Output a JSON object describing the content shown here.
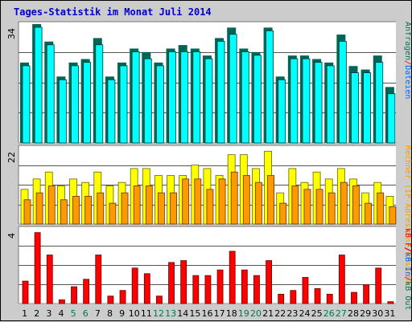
{
  "title": "Tages-Statistik im Monat Juli 2014",
  "colors": {
    "background": "#cccccc",
    "panel": "#ffffff",
    "title": "#0000cc",
    "anfragen": "#00ffff",
    "anfragen_shadow": "#006655",
    "dateien": "#0099ff",
    "rechner": "#ffff00",
    "besuche": "#ff9900",
    "kb_in": "#ff0000",
    "weekend_label": "#007755",
    "weekday_label": "#000000"
  },
  "chart_data": [
    {
      "type": "bar",
      "panel": "top",
      "ymax_label": "34",
      "categories": [
        "1",
        "2",
        "3",
        "4",
        "5",
        "6",
        "7",
        "8",
        "9",
        "10",
        "11",
        "12",
        "13",
        "14",
        "15",
        "16",
        "17",
        "18",
        "19",
        "20",
        "21",
        "22",
        "23",
        "24",
        "25",
        "26",
        "27",
        "28",
        "29",
        "30",
        "31"
      ],
      "weekend": [
        false,
        false,
        false,
        false,
        true,
        true,
        false,
        false,
        false,
        false,
        false,
        true,
        true,
        false,
        false,
        false,
        false,
        false,
        true,
        true,
        false,
        false,
        false,
        false,
        false,
        true,
        true,
        false,
        false,
        false,
        false
      ],
      "ylim": [
        0,
        34
      ],
      "series": [
        {
          "name": "Anfragen",
          "values": [
            23,
            34,
            29,
            19,
            23,
            24,
            30,
            19,
            23,
            27,
            26,
            23,
            27,
            28,
            27,
            25,
            30,
            33,
            27,
            26,
            33,
            19,
            25,
            25,
            24,
            23,
            31,
            22,
            21,
            25,
            16
          ]
        },
        {
          "name": "Dateien",
          "values": [
            23,
            34,
            29,
            19,
            23,
            24,
            29,
            19,
            23,
            27,
            25,
            23,
            27,
            27,
            27,
            25,
            30,
            32,
            27,
            26,
            33,
            19,
            25,
            25,
            24,
            23,
            30,
            21,
            21,
            24,
            15
          ]
        }
      ]
    },
    {
      "type": "bar",
      "panel": "middle",
      "ymax_label": "22",
      "ylim": [
        0,
        22
      ],
      "series": [
        {
          "name": "Rechner (IP-Adressen)",
          "values": [
            10,
            13,
            15,
            11,
            13,
            12,
            15,
            11,
            12,
            16,
            16,
            14,
            14,
            14,
            17,
            16,
            14,
            20,
            20,
            16,
            21,
            9,
            16,
            12,
            15,
            13,
            16,
            13,
            9,
            12,
            8
          ]
        },
        {
          "name": "Besuche",
          "values": [
            7,
            9,
            11,
            7,
            8,
            8,
            9,
            6,
            9,
            11,
            11,
            9,
            9,
            13,
            13,
            10,
            13,
            15,
            14,
            12,
            14,
            6,
            11,
            10,
            10,
            9,
            12,
            11,
            6,
            9,
            5
          ]
        }
      ]
    },
    {
      "type": "bar",
      "panel": "bottom",
      "ymax_label": "4",
      "ylim": [
        0,
        4
      ],
      "series": [
        {
          "name": "kB F",
          "values": [
            1.2,
            3.8,
            2.6,
            0.2,
            0.9,
            1.3,
            2.6,
            0.4,
            0.7,
            1.9,
            1.6,
            0.4,
            2.2,
            2.3,
            1.5,
            1.5,
            1.8,
            2.8,
            1.8,
            1.5,
            2.3,
            0.5,
            0.7,
            1.4,
            0.8,
            0.5,
            2.6,
            0.6,
            1.0,
            1.9,
            0.1
          ]
        }
      ]
    }
  ],
  "legend": {
    "top": [
      {
        "text": "Anfragen",
        "color": "#007755"
      },
      {
        "text": "/",
        "color": "#ff0000"
      },
      {
        "text": "Dateien",
        "color": "#0066ff"
      }
    ],
    "middle": [
      {
        "text": "Rechner (IP-Adressen)",
        "color": "#ff9900"
      },
      {
        "text": "/",
        "color": "#ff0000"
      },
      {
        "text": "Besuche",
        "color": "#ff9900"
      }
    ],
    "bottom": [
      {
        "text": "kB F",
        "color": "#ff0000"
      },
      {
        "text": "/",
        "color": "#ff0000"
      },
      {
        "text": "kB In",
        "color": "#0066ff"
      },
      {
        "text": "/",
        "color": "#ff0000"
      },
      {
        "text": "kB Out",
        "color": "#007755"
      }
    ]
  }
}
